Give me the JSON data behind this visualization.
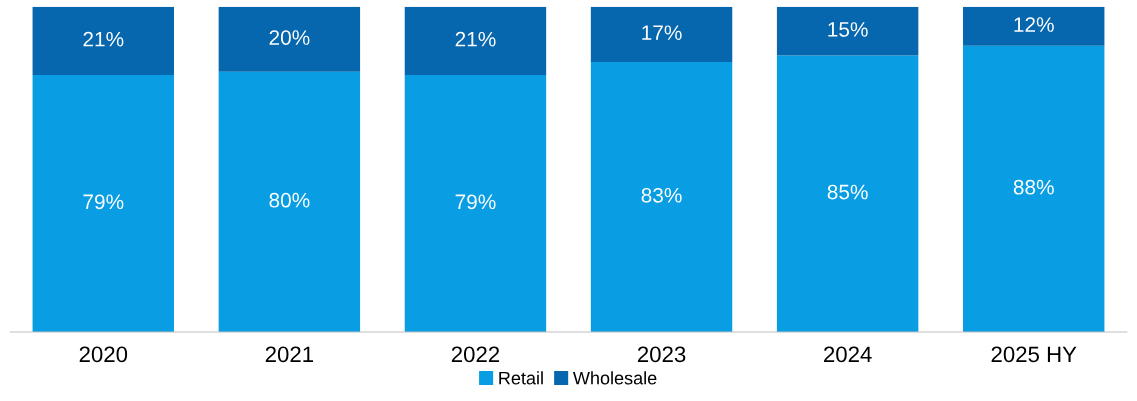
{
  "chart_data": {
    "type": "bar",
    "stacked": true,
    "categories": [
      "2020",
      "2021",
      "2022",
      "2023",
      "2024",
      "2025 HY"
    ],
    "series": [
      {
        "name": "Retail",
        "color": "#099ee3",
        "values": [
          79,
          80,
          79,
          83,
          85,
          88
        ],
        "value_labels": [
          "79%",
          "80%",
          "79%",
          "83%",
          "85%",
          "88%"
        ]
      },
      {
        "name": "Wholesale",
        "color": "#0667ae",
        "values": [
          21,
          20,
          21,
          17,
          15,
          12
        ],
        "value_labels": [
          "21%",
          "20%",
          "21%",
          "17%",
          "15%",
          "12%"
        ]
      }
    ],
    "legend": "bottom",
    "grid": false
  }
}
